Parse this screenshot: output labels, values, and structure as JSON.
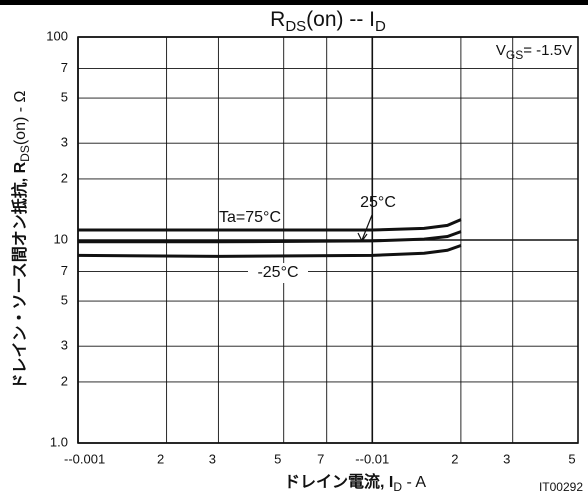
{
  "chart_data": {
    "type": "line",
    "title": [
      "R",
      "DS",
      "(on)  --  I",
      "D"
    ],
    "y_label": [
      "ドレイン・ソース間オン抵抗, R",
      "DS",
      "(on)  -  Ω"
    ],
    "x_label": [
      "ドレイン電流, I",
      "D",
      "  -  A"
    ],
    "condition": [
      "V",
      "GS",
      "= -1.5V"
    ],
    "code": "IT00292",
    "log_x": true,
    "log_y": true,
    "grid": true,
    "xlim": [
      0.001,
      0.05
    ],
    "ylim": [
      1,
      100
    ],
    "xticks": [
      {
        "value": 0.001,
        "label": "--0.001"
      },
      {
        "value": 0.002,
        "label": "2"
      },
      {
        "value": 0.003,
        "label": "3"
      },
      {
        "value": 0.005,
        "label": "5"
      },
      {
        "value": 0.007,
        "label": "7"
      },
      {
        "value": 0.01,
        "label": "--0.01"
      },
      {
        "value": 0.02,
        "label": "2"
      },
      {
        "value": 0.03,
        "label": "3"
      },
      {
        "value": 0.05,
        "label": "5"
      }
    ],
    "yticks": [
      {
        "value": 1,
        "label": "1.0"
      },
      2,
      3,
      5,
      7,
      10,
      {
        "value": 20,
        "label": "2"
      },
      {
        "value": 30,
        "label": "3"
      },
      {
        "value": 50,
        "label": "5"
      },
      {
        "value": 70,
        "label": "7"
      },
      100
    ],
    "x": [
      0.001,
      0.003,
      0.01,
      0.015,
      0.018,
      0.02
    ],
    "series": [
      {
        "name": "Ta=75°C",
        "color": "#111111",
        "values": [
          11.2,
          11.2,
          11.2,
          11.4,
          11.8,
          12.6
        ]
      },
      {
        "name": "25°C",
        "color": "#111111",
        "values": [
          9.8,
          9.8,
          9.9,
          10.1,
          10.4,
          11.0
        ]
      },
      {
        "name": "-25°C",
        "color": "#111111",
        "values": [
          8.4,
          8.3,
          8.4,
          8.6,
          8.9,
          9.4
        ]
      }
    ]
  }
}
